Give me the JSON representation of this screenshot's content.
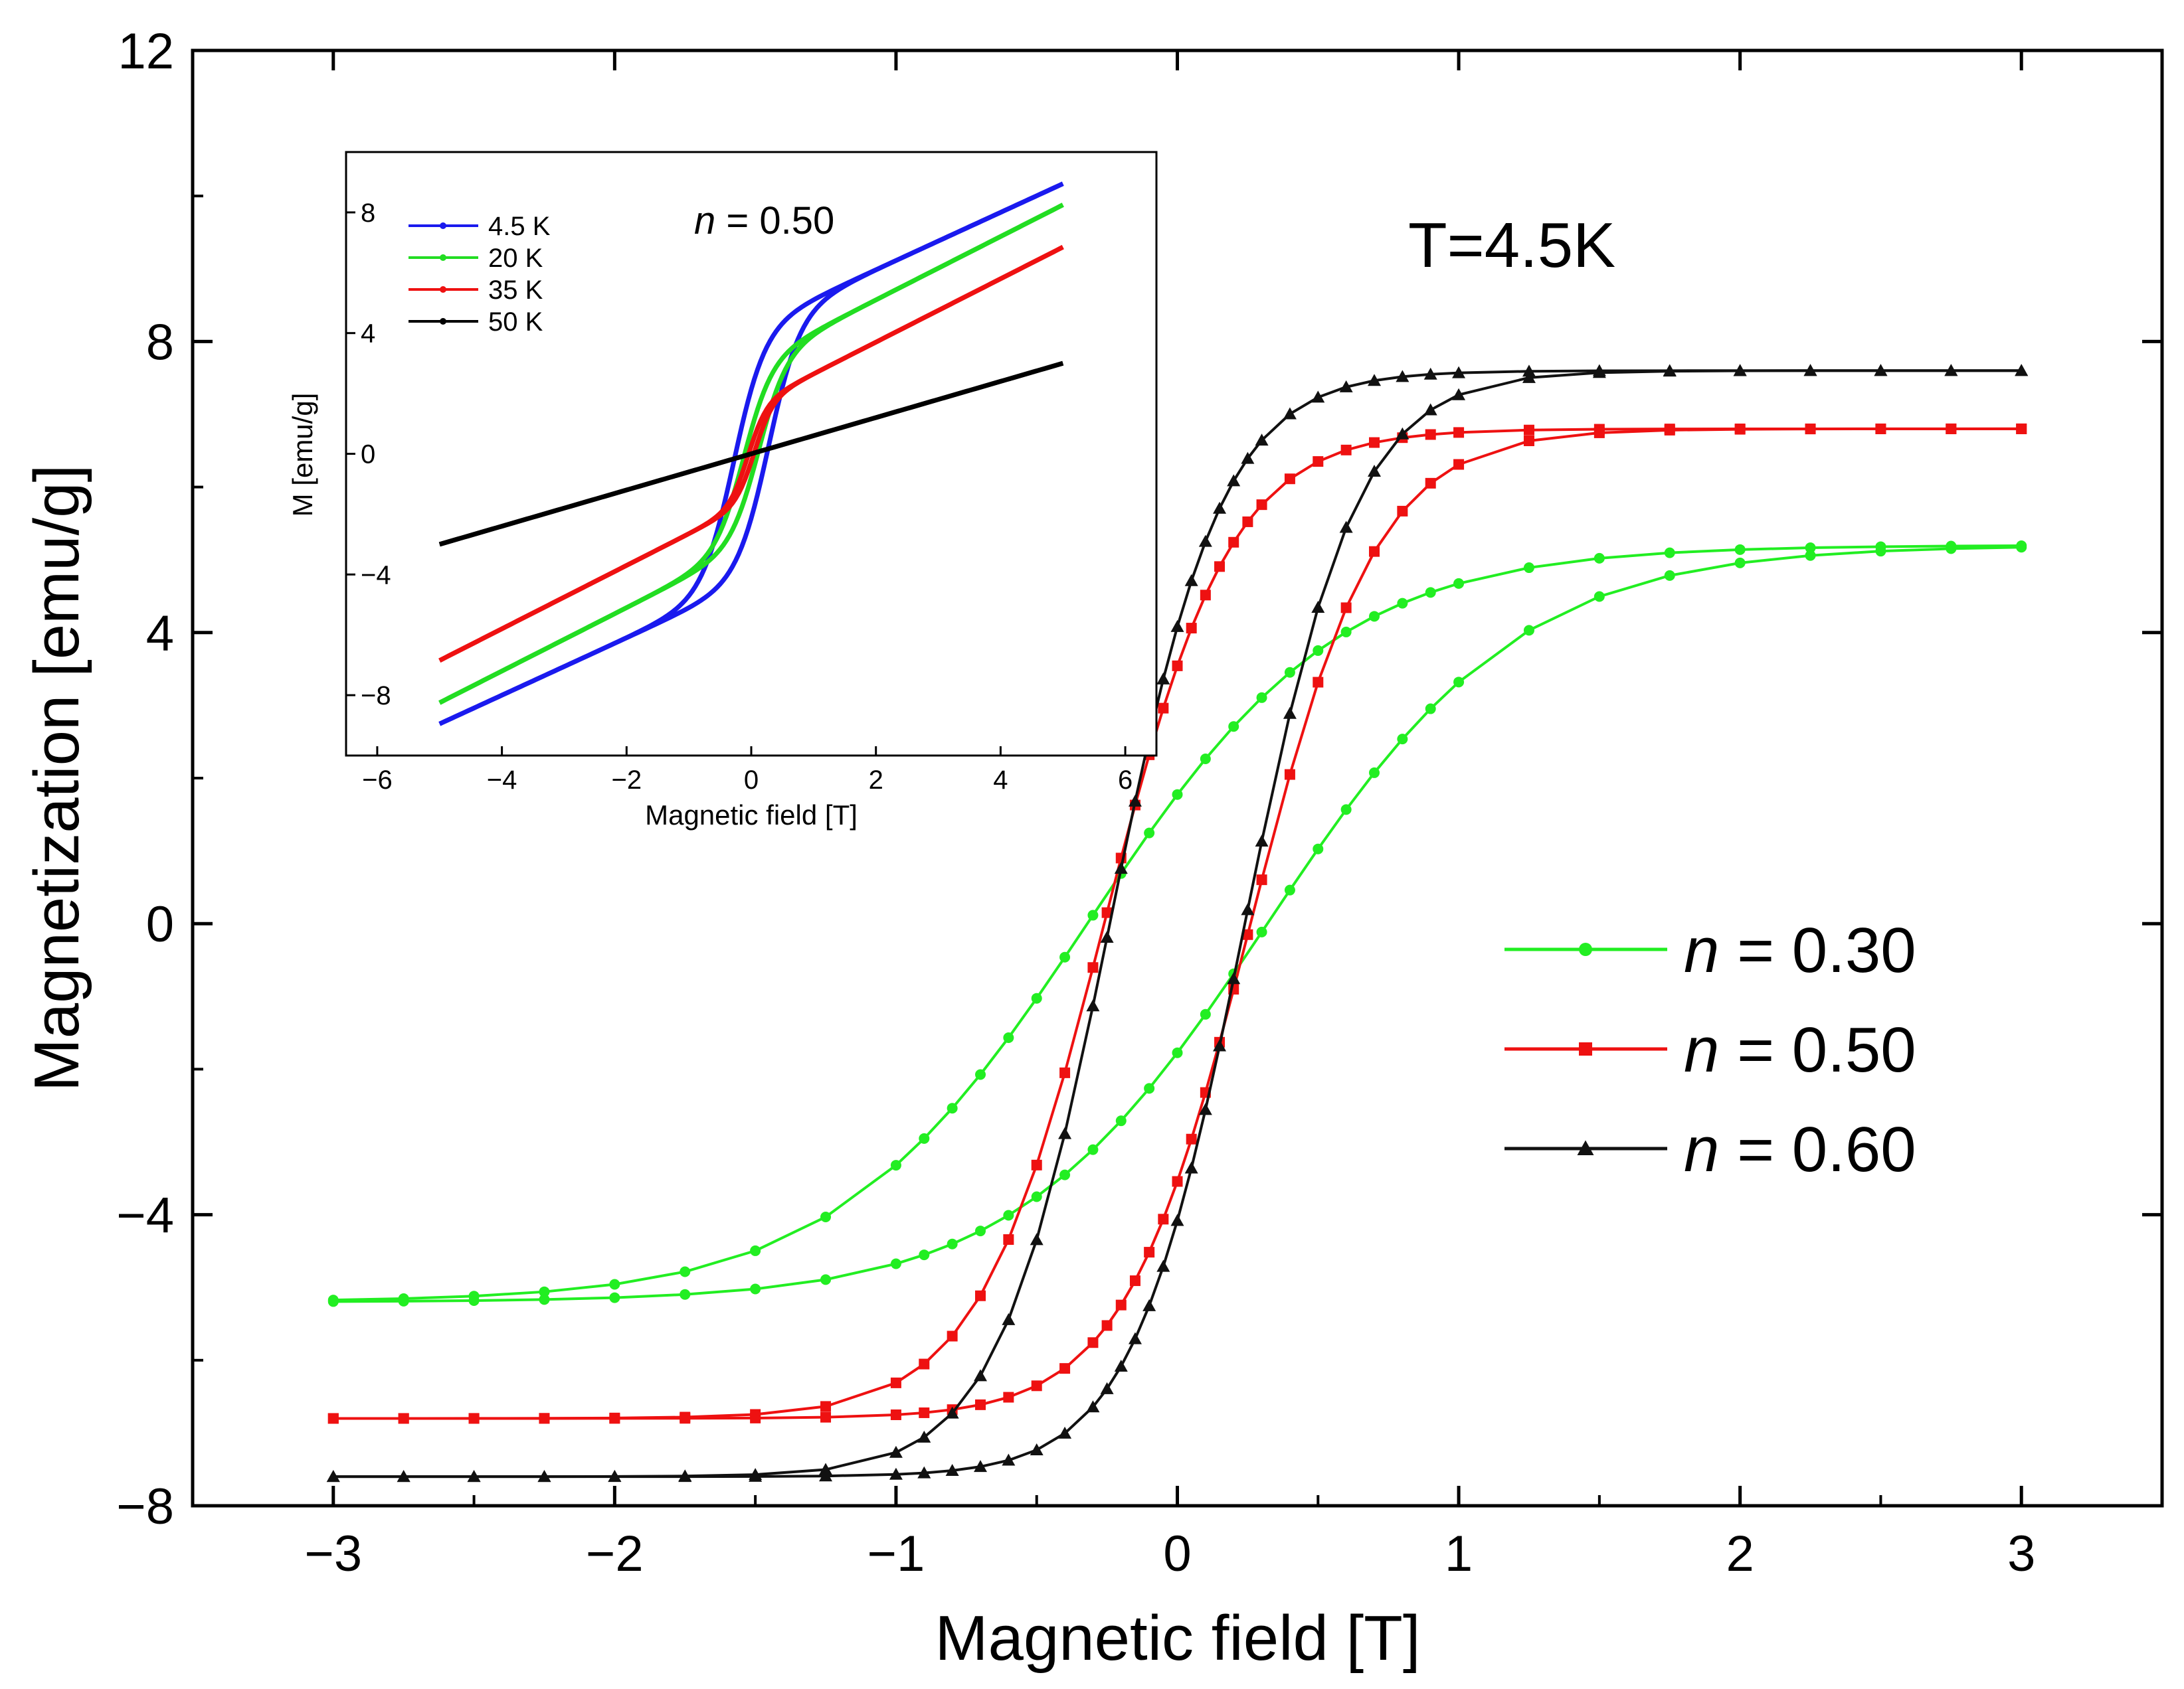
{
  "chart_data": [
    {
      "type": "line",
      "name": "main",
      "xlabel": "Magnetic field [T]",
      "ylabel": "Magnetization [emu/g]",
      "xlim": [
        -3.5,
        3.5
      ],
      "ylim": [
        -8,
        12
      ],
      "xticks": [
        -3,
        -2,
        -1,
        0,
        1,
        2,
        3
      ],
      "xtick_labels": [
        "−3",
        "−2",
        "−1",
        "0",
        "1",
        "2",
        "3"
      ],
      "yticks": [
        -8,
        -4,
        0,
        4,
        8,
        12
      ],
      "ytick_labels": [
        "−8",
        "−4",
        "0",
        "4",
        "8",
        "12"
      ],
      "annotation": "T=4.5K",
      "legend_placement": "right",
      "series": [
        {
          "name": "n = 0.30",
          "legend_var": "n",
          "legend_value": " = 0.30",
          "color": "#22ee22",
          "marker": "circle",
          "Ms": 5.2,
          "Hc": 0.32,
          "H0": 0.9,
          "x_samples": [
            -3,
            -2.75,
            -2.5,
            -2.25,
            -2,
            -1.75,
            -1.5,
            -1.25,
            -1,
            -0.9,
            -0.8,
            -0.7,
            -0.6,
            -0.5,
            -0.4,
            -0.3,
            -0.2,
            -0.1,
            0,
            0.1,
            0.2,
            0.3,
            0.4,
            0.5,
            0.6,
            0.7,
            0.8,
            0.9,
            1,
            1.25,
            1.5,
            1.75,
            2,
            2.25,
            2.5,
            2.75,
            3
          ]
        },
        {
          "name": "n = 0.50",
          "legend_var": "n",
          "legend_value": " = 0.50",
          "color": "#ee1111",
          "marker": "square",
          "Ms": 6.8,
          "Hc": 0.26,
          "H0": 0.45,
          "x_samples": [
            -3,
            -2.75,
            -2.5,
            -2.25,
            -2,
            -1.75,
            -1.5,
            -1.25,
            -1,
            -0.9,
            -0.8,
            -0.7,
            -0.6,
            -0.5,
            -0.4,
            -0.3,
            -0.25,
            -0.2,
            -0.15,
            -0.1,
            -0.05,
            0,
            0.05,
            0.1,
            0.15,
            0.2,
            0.25,
            0.3,
            0.4,
            0.5,
            0.6,
            0.7,
            0.8,
            0.9,
            1,
            1.25,
            1.5,
            1.75,
            2,
            2.25,
            2.5,
            2.75,
            3
          ]
        },
        {
          "name": "n = 0.60",
          "legend_var": "n",
          "legend_value": " = 0.60",
          "color": "#111111",
          "marker": "triangle",
          "Ms": 7.6,
          "Hc": 0.24,
          "H0": 0.4,
          "x_samples": [
            -3,
            -2.75,
            -2.5,
            -2.25,
            -2,
            -1.75,
            -1.5,
            -1.25,
            -1,
            -0.9,
            -0.8,
            -0.7,
            -0.6,
            -0.5,
            -0.4,
            -0.3,
            -0.25,
            -0.2,
            -0.15,
            -0.1,
            -0.05,
            0,
            0.05,
            0.1,
            0.15,
            0.2,
            0.25,
            0.3,
            0.4,
            0.5,
            0.6,
            0.7,
            0.8,
            0.9,
            1,
            1.25,
            1.5,
            1.75,
            2,
            2.25,
            2.5,
            2.75,
            3
          ]
        }
      ]
    },
    {
      "type": "line",
      "name": "inset",
      "xlabel": "Magnetic field [T]",
      "ylabel": "M  [emu/g]",
      "xlim": [
        -6.5,
        6.5
      ],
      "ylim": [
        -10,
        10
      ],
      "xticks": [
        -6,
        -4,
        -2,
        0,
        2,
        4,
        6
      ],
      "xtick_labels": [
        "−6",
        "−4",
        "−2",
        "0",
        "2",
        "4",
        "6"
      ],
      "yticks": [
        -8,
        -4,
        0,
        4,
        8
      ],
      "ytick_labels": [
        "−8",
        "−4",
        "0",
        "4",
        "8"
      ],
      "annotation_var": "n",
      "annotation_value": " = 0.50",
      "legend_placement": "top-left",
      "series": [
        {
          "name": "4.5 K",
          "color": "#1a1aee",
          "Ms": 4.2,
          "Hc": 0.28,
          "H0": 0.5,
          "chi": 0.95
        },
        {
          "name": "20 K",
          "color": "#22dd22",
          "Ms": 3.0,
          "Hc": 0.12,
          "H0": 0.45,
          "chi": 1.05
        },
        {
          "name": "35 K",
          "color": "#ee1111",
          "Ms": 1.6,
          "Hc": 0.05,
          "H0": 0.3,
          "chi": 1.05
        },
        {
          "name": "50 K",
          "color": "#000000",
          "Ms": 0.0,
          "Hc": 0.0,
          "H0": 0.3,
          "chi": 0.6
        }
      ]
    }
  ]
}
